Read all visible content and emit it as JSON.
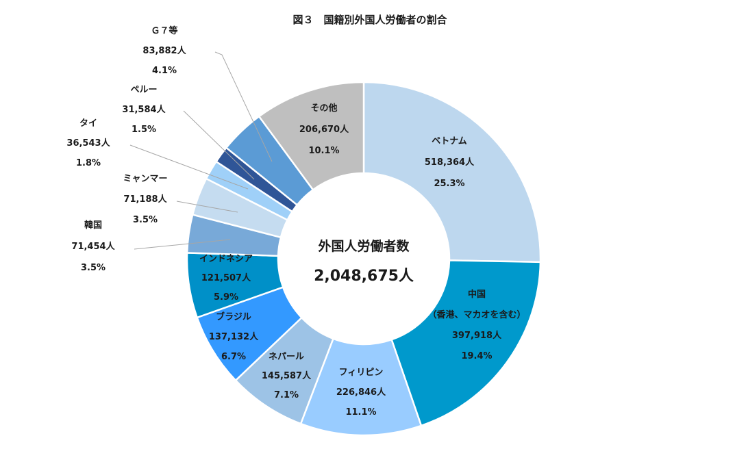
{
  "chart_data": {
    "type": "pie",
    "title": "図３　国籍別外国人労働者の割合",
    "center_title": "外国人労働者数",
    "center_total": "2,048,675人",
    "slices": [
      {
        "label": "ベトナム",
        "sub_label": "",
        "count": 518364,
        "count_text": "518,364人",
        "percent": 25.3,
        "percent_text": "25.3%",
        "color": "#bdd7ee"
      },
      {
        "label": "中国",
        "sub_label": "（香港、マカオを含む）",
        "count": 397918,
        "count_text": "397,918人",
        "percent": 19.4,
        "percent_text": "19.4%",
        "color": "#0099cc"
      },
      {
        "label": "フィリピン",
        "sub_label": "",
        "count": 226846,
        "count_text": "226,846人",
        "percent": 11.1,
        "percent_text": "11.1%",
        "color": "#99ccff"
      },
      {
        "label": "ネパール",
        "sub_label": "",
        "count": 145587,
        "count_text": "145,587人",
        "percent": 7.1,
        "percent_text": "7.1%",
        "color": "#9dc3e6"
      },
      {
        "label": "ブラジル",
        "sub_label": "",
        "count": 137132,
        "count_text": "137,132人",
        "percent": 6.7,
        "percent_text": "6.7%",
        "color": "#3399ff"
      },
      {
        "label": "インドネシア",
        "sub_label": "",
        "count": 121507,
        "count_text": "121,507人",
        "percent": 5.9,
        "percent_text": "5.9%",
        "color": "#0090c8"
      },
      {
        "label": "韓国",
        "sub_label": "",
        "count": 71454,
        "count_text": "71,454人",
        "percent": 3.5,
        "percent_text": "3.5%",
        "color": "#78a9d8"
      },
      {
        "label": "ミャンマー",
        "sub_label": "",
        "count": 71188,
        "count_text": "71,188人",
        "percent": 3.5,
        "percent_text": "3.5%",
        "color": "#c5dcf0"
      },
      {
        "label": "タイ",
        "sub_label": "",
        "count": 36543,
        "count_text": "36,543人",
        "percent": 1.8,
        "percent_text": "1.8%",
        "color": "#9fd0f8"
      },
      {
        "label": "ペルー",
        "sub_label": "",
        "count": 31584,
        "count_text": "31,584人",
        "percent": 1.5,
        "percent_text": "1.5%",
        "color": "#2f5597"
      },
      {
        "label": "Ｇ７等",
        "sub_label": "",
        "count": 83882,
        "count_text": "83,882人",
        "percent": 4.1,
        "percent_text": "4.1%",
        "color": "#5b9bd5"
      },
      {
        "label": "その他",
        "sub_label": "",
        "count": 206670,
        "count_text": "206,670人",
        "percent": 10.1,
        "percent_text": "10.1%",
        "color": "#bfbfbf"
      }
    ]
  }
}
